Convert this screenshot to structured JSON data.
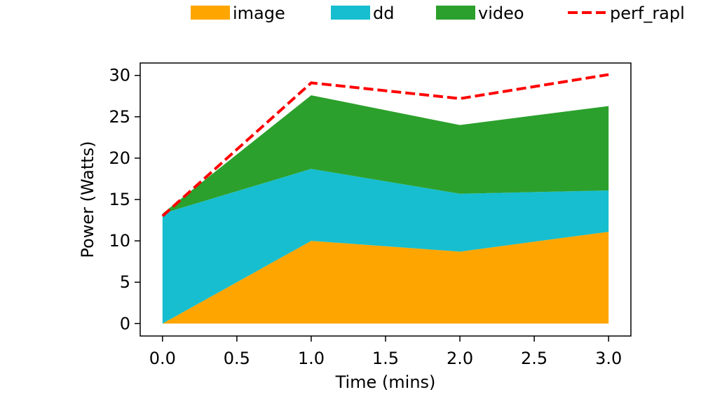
{
  "chart_data": {
    "type": "area",
    "stacked": true,
    "x": [
      0,
      1,
      2,
      3
    ],
    "xlabel": "Time (mins)",
    "ylabel": "Power (Watts)",
    "xlim": [
      -0.15,
      3.15
    ],
    "ylim": [
      -1.5,
      31.5
    ],
    "xticks": [
      0.0,
      0.5,
      1.0,
      1.5,
      2.0,
      2.5,
      3.0
    ],
    "xtick_labels": [
      "0.0",
      "0.5",
      "1.0",
      "1.5",
      "2.0",
      "2.5",
      "3.0"
    ],
    "yticks": [
      0,
      5,
      10,
      15,
      20,
      25,
      30
    ],
    "ytick_labels": [
      "0",
      "5",
      "10",
      "15",
      "20",
      "25",
      "30"
    ],
    "grid": false,
    "legend_placement": "top",
    "series": [
      {
        "name": "image",
        "kind": "area",
        "color": "#ffa500",
        "values": [
          0.0,
          10.0,
          8.7,
          11.1
        ]
      },
      {
        "name": "dd",
        "kind": "area",
        "color": "#17becf",
        "values": [
          13.3,
          8.7,
          7.0,
          5.0
        ]
      },
      {
        "name": "video",
        "kind": "area",
        "color": "#2ca02c",
        "values": [
          0.0,
          8.9,
          8.3,
          10.2
        ]
      },
      {
        "name": "perf_rapl",
        "kind": "line",
        "style": "dashed",
        "color": "#ff0000",
        "values": [
          13.0,
          29.1,
          27.2,
          30.1
        ]
      }
    ]
  }
}
